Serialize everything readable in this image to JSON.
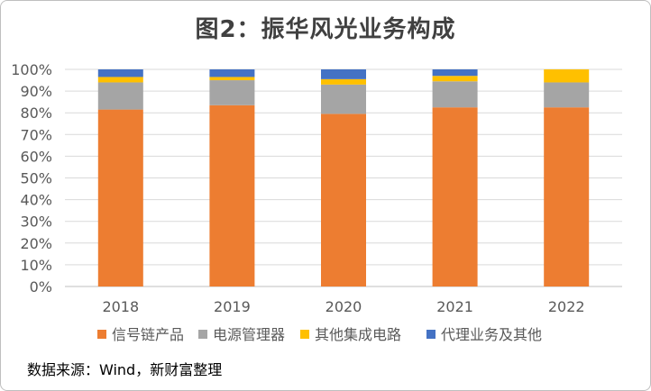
{
  "chart_data": {
    "type": "bar",
    "stacked": true,
    "title": "图2：振华风光业务构成",
    "xlabel": "",
    "ylabel": "",
    "categories": [
      "2018",
      "2019",
      "2020",
      "2021",
      "2022"
    ],
    "yticks": [
      "0%",
      "10%",
      "20%",
      "30%",
      "40%",
      "50%",
      "60%",
      "70%",
      "80%",
      "90%",
      "100%"
    ],
    "ylim": [
      0,
      100
    ],
    "grid": true,
    "legend_position": "bottom",
    "series": [
      {
        "name": "信号链产品",
        "color": "#ED7D31",
        "values": [
          81.5,
          83.5,
          79.5,
          82.5,
          82.5
        ]
      },
      {
        "name": "电源管理器",
        "color": "#A5A5A5",
        "values": [
          12.5,
          11.5,
          13.5,
          12.0,
          11.5
        ]
      },
      {
        "name": "其他集成电路",
        "color": "#FFC000",
        "values": [
          2.5,
          1.5,
          2.5,
          2.5,
          6.0
        ]
      },
      {
        "name": "代理业务及其他",
        "color": "#4472C4",
        "values": [
          3.5,
          3.5,
          4.5,
          3.0,
          0.0
        ]
      }
    ]
  },
  "source_note": "数据来源：Wind，新财富整理"
}
